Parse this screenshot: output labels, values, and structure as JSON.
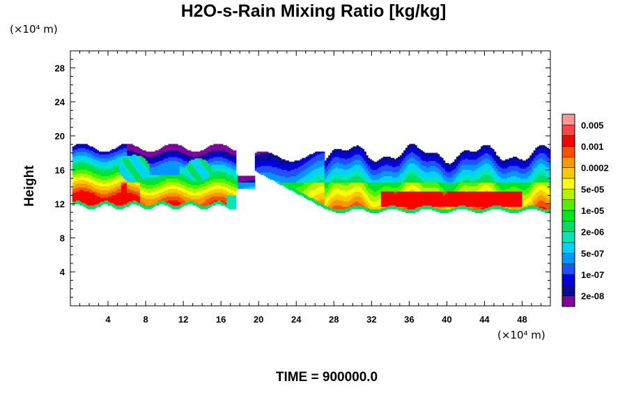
{
  "chart_data": {
    "type": "heatmap",
    "title": "H2O-s-Rain Mixing Ratio [kg/kg]",
    "ylabel": "Height",
    "xlabel": "",
    "x_unit_label": "(×10⁴ m)",
    "y_unit_label": "(×10⁴ m)",
    "xlim": [
      0,
      51
    ],
    "ylim": [
      0,
      30
    ],
    "x_ticks": [
      4,
      8,
      12,
      16,
      20,
      24,
      28,
      32,
      36,
      40,
      44,
      48
    ],
    "y_ticks": [
      4,
      8,
      12,
      16,
      20,
      24,
      28
    ],
    "colorbar": {
      "colors": [
        "#8000a0",
        "#0a0a96",
        "#0000dc",
        "#1e50ff",
        "#0096ff",
        "#00d2ff",
        "#00e6b4",
        "#00dc64",
        "#00e61e",
        "#50f000",
        "#b4f000",
        "#ffff00",
        "#ffc800",
        "#ff9600",
        "#ff5000",
        "#ff0000",
        "#ff4646",
        "#ff9696"
      ],
      "labels": [
        "2e-08",
        "1e-07",
        "5e-07",
        "2e-06",
        "1e-05",
        "5e-05",
        "0.0002",
        "0.001",
        "0.005"
      ]
    },
    "field_description_levels": {
      "note": ""
    },
    "time_label": "TIME = 900000.0"
  }
}
